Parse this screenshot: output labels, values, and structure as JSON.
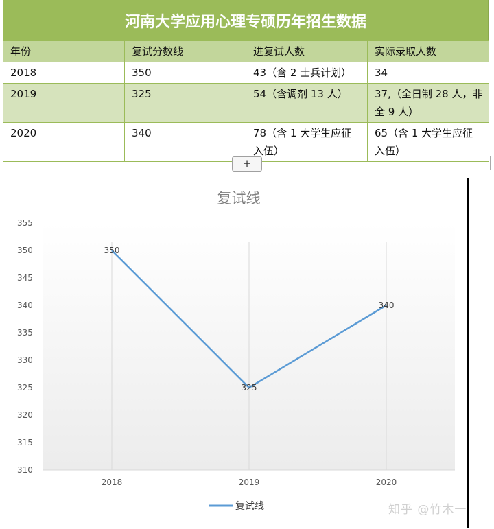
{
  "table": {
    "title": "河南大学应用心理专硕历年招生数据",
    "headers": [
      "年份",
      "复试分数线",
      "进复试人数",
      "实际录取人数"
    ],
    "rows": [
      [
        "2018",
        "350",
        "43（含 2 士兵计划）",
        "34"
      ],
      [
        "2019",
        "325",
        "54（含调剂 13 人）",
        "37,（全日制 28 人，非全 9 人）"
      ],
      [
        "2020",
        "340",
        "78（含 1 大学生应征入伍）",
        "65（含 1 大学生应征入伍）"
      ]
    ],
    "add_label": "+"
  },
  "colors": {
    "title_bg": "#9bbb59",
    "header_bg": "#c2d69b",
    "band_bg": "#d6e3bc",
    "line": "#5b9bd5"
  },
  "chart_data": {
    "type": "line",
    "title": "复试线",
    "categories": [
      "2018",
      "2019",
      "2020"
    ],
    "series": [
      {
        "name": "复试线",
        "values": [
          350,
          325,
          340
        ]
      }
    ],
    "data_labels": [
      "350",
      "325",
      "340"
    ],
    "ylim": [
      310,
      355
    ],
    "yticks": [
      310,
      315,
      320,
      325,
      330,
      335,
      340,
      345,
      350,
      355
    ],
    "legend_position": "bottom",
    "grid": "vertical"
  },
  "watermark": "知乎 @竹木一"
}
